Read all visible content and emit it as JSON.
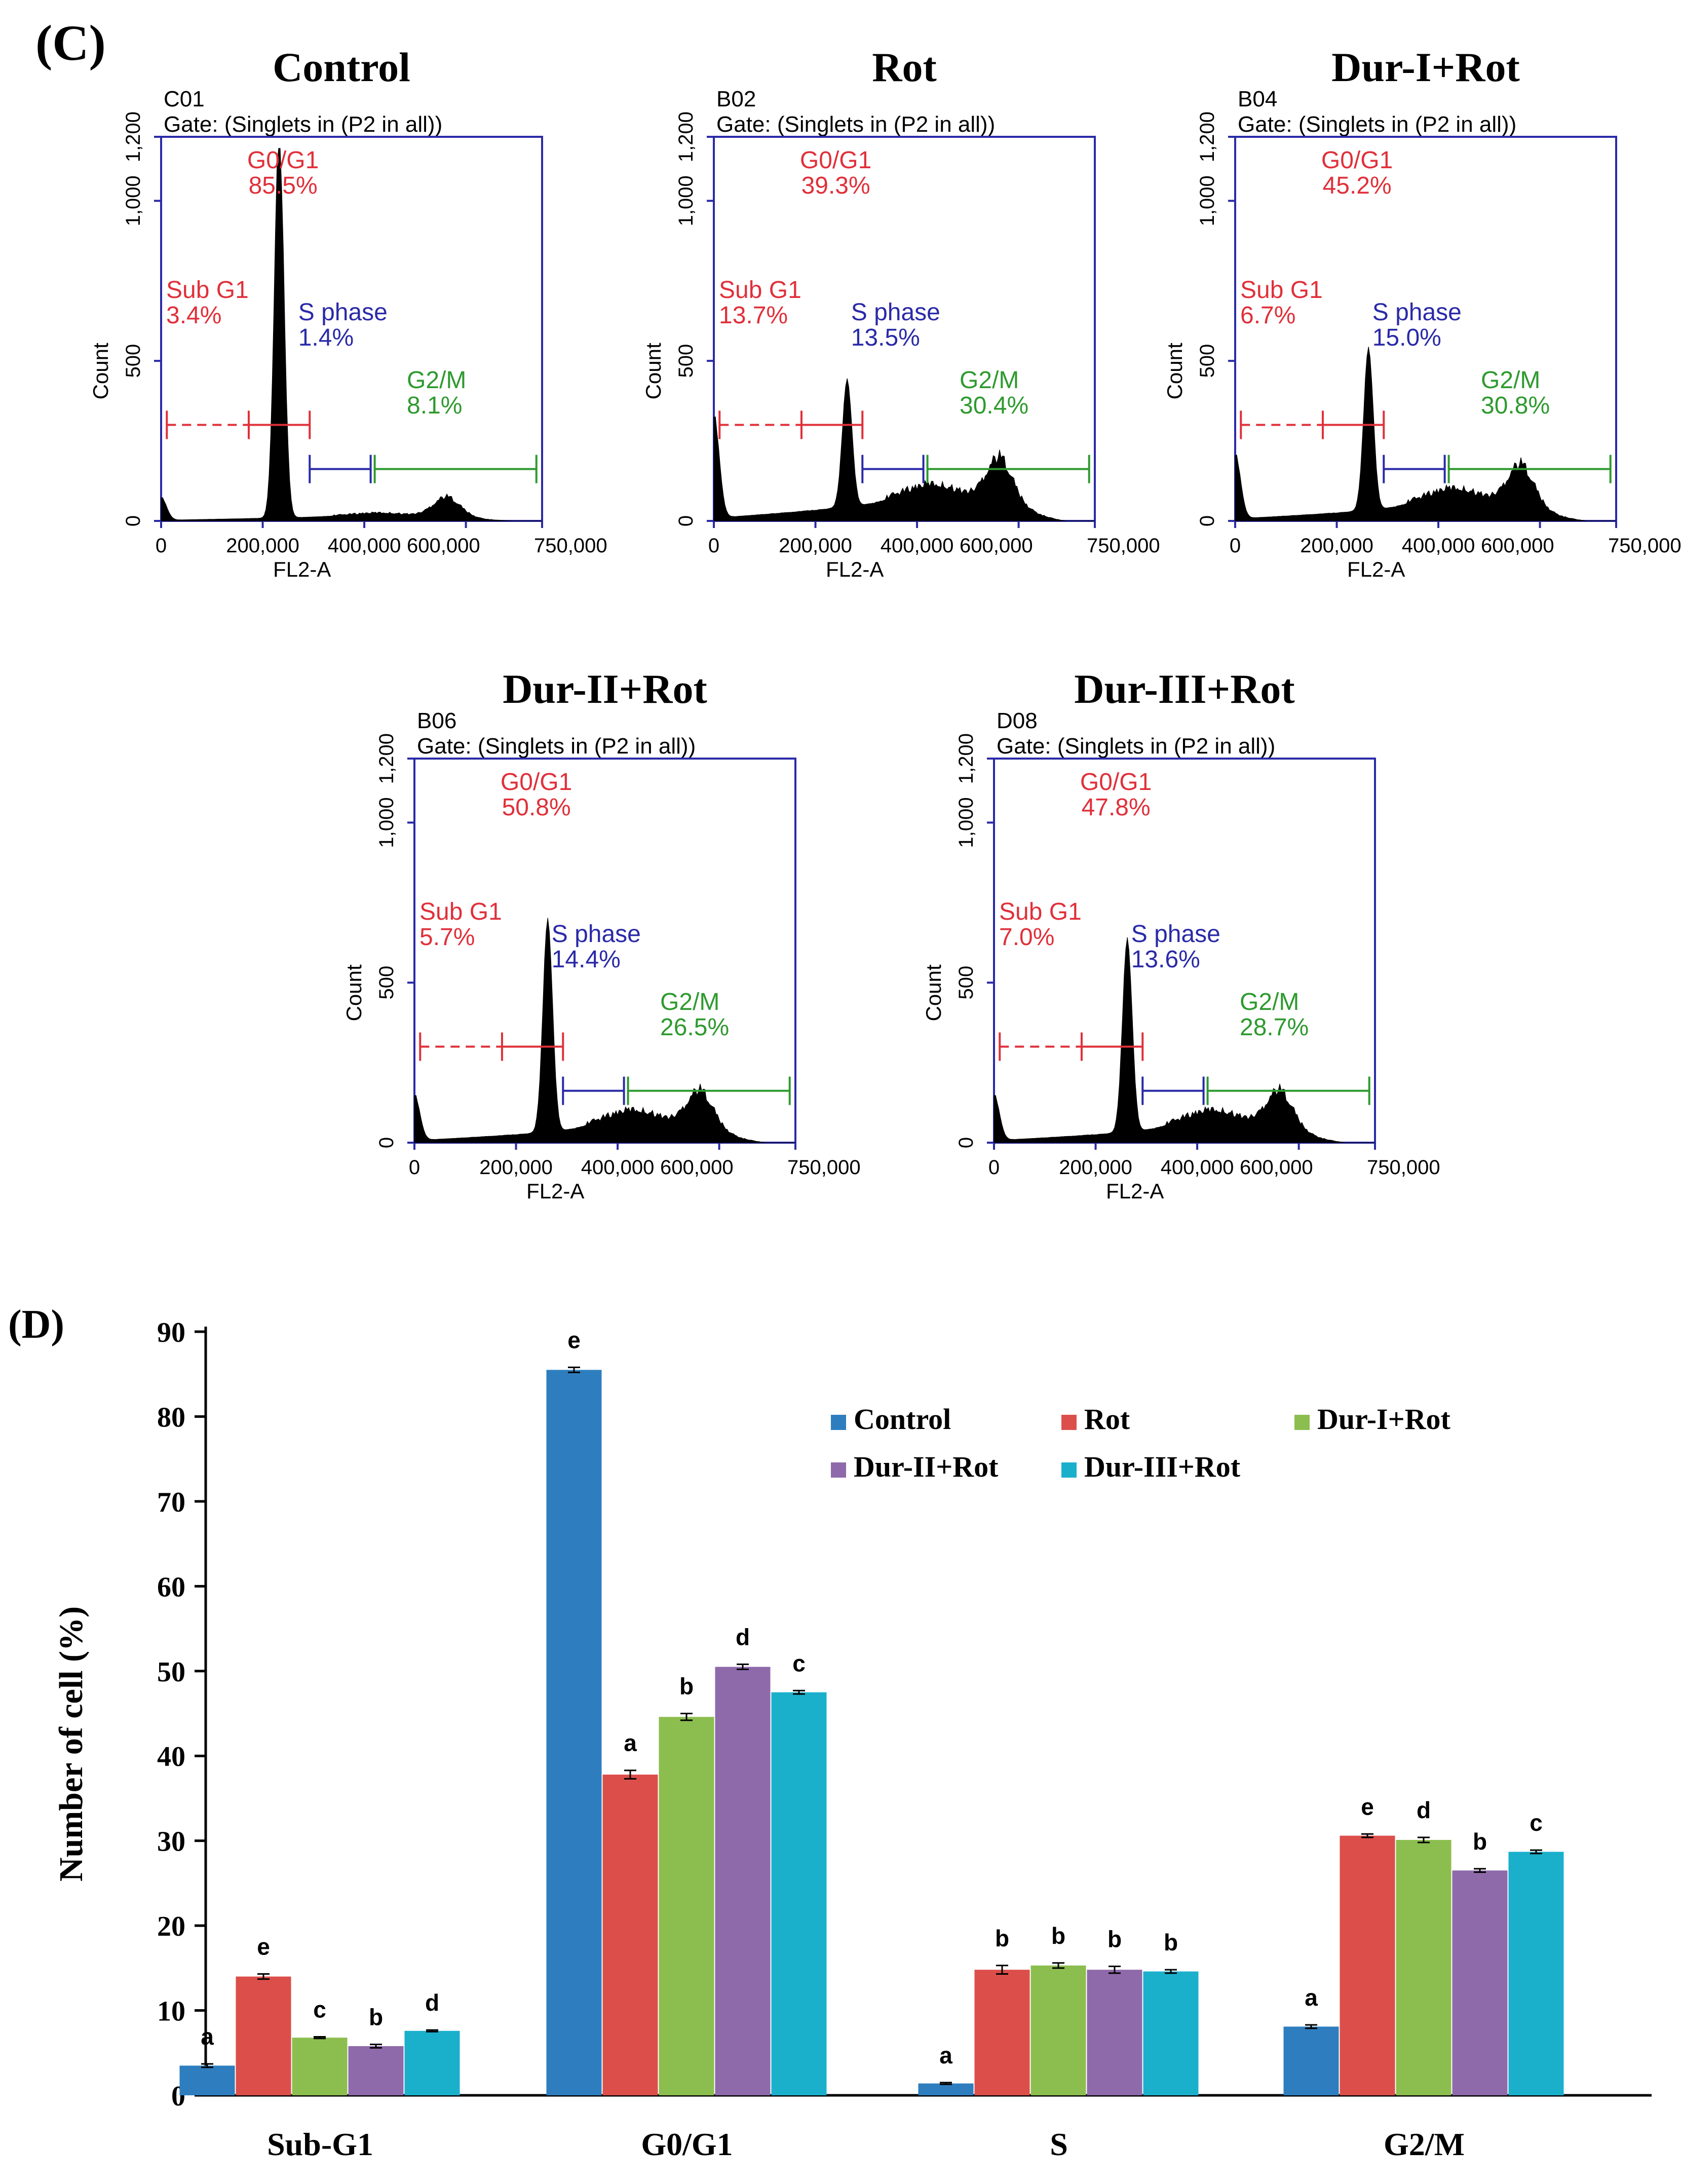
{
  "panel_c": {
    "label": "(C)",
    "gate_text": "Gate: (Singlets in (P2 in all))",
    "x_axis_label": "FL2-A",
    "y_axis_label": "Count",
    "x_ticks": [
      "0",
      "200,000",
      "400,000",
      "600,000",
      "750,000"
    ],
    "y_ticks": [
      "0",
      "500",
      "1,000",
      "1,200"
    ],
    "region_labels": {
      "sub_g1": "Sub G1",
      "g0_g1": "G0/G1",
      "s": "S phase",
      "g2_m": "G2/M"
    },
    "colors": {
      "sub_g1": "#e0303a",
      "g0_g1": "#e0303a",
      "s": "#2a2aa8",
      "g2_m": "#2e9a2e",
      "frame": "#2a2aa8",
      "histogram": "#000000"
    },
    "plots": [
      {
        "title": "Control",
        "sample": "C01",
        "sub_g1": "3.4%",
        "g0_g1": "85.5%",
        "s": "1.4%",
        "g2_m": "8.1%"
      },
      {
        "title": "Rot",
        "sample": "B02",
        "sub_g1": "13.7%",
        "g0_g1": "39.3%",
        "s": "13.5%",
        "g2_m": "30.4%"
      },
      {
        "title": "Dur-I+Rot",
        "sample": "B04",
        "sub_g1": "6.7%",
        "g0_g1": "45.2%",
        "s": "15.0%",
        "g2_m": "30.8%"
      },
      {
        "title": "Dur-II+Rot",
        "sample": "B06",
        "sub_g1": "5.7%",
        "g0_g1": "50.8%",
        "s": "14.4%",
        "g2_m": "26.5%"
      },
      {
        "title": "Dur-III+Rot",
        "sample": "D08",
        "sub_g1": "7.0%",
        "g0_g1": "47.8%",
        "s": "13.6%",
        "g2_m": "28.7%"
      }
    ]
  },
  "chart_data": {
    "label": "(D)",
    "type": "bar",
    "title": "",
    "xlabel": "",
    "ylabel": "Number of cell (%)",
    "ylim": [
      0,
      90
    ],
    "yticks": [
      0,
      10,
      20,
      30,
      40,
      50,
      60,
      70,
      80,
      90
    ],
    "grid": false,
    "legend_position": "top-right",
    "categories": [
      "Sub-G1",
      "G0/G1",
      "S",
      "G2/M"
    ],
    "series": [
      {
        "name": "Control",
        "color": "#2e7ebf",
        "values": [
          3.5,
          85.5,
          1.4,
          8.1
        ],
        "errors": [
          0.2,
          0.3,
          0.1,
          0.2
        ],
        "letters": [
          "a",
          "e",
          "a",
          "a"
        ]
      },
      {
        "name": "Rot",
        "color": "#dc4e4a",
        "values": [
          14.0,
          37.8,
          14.8,
          30.6
        ],
        "errors": [
          0.3,
          0.5,
          0.5,
          0.2
        ],
        "letters": [
          "e",
          "a",
          "b",
          "e"
        ]
      },
      {
        "name": "Dur-I+Rot",
        "color": "#8cbe4f",
        "values": [
          6.8,
          44.6,
          15.3,
          30.1
        ],
        "errors": [
          0.1,
          0.4,
          0.3,
          0.3
        ],
        "letters": [
          "c",
          "b",
          "b",
          "d"
        ]
      },
      {
        "name": "Dur-II+Rot",
        "color": "#8e6aaa",
        "values": [
          5.8,
          50.5,
          14.8,
          26.5
        ],
        "errors": [
          0.2,
          0.3,
          0.4,
          0.2
        ],
        "letters": [
          "b",
          "d",
          "b",
          "b"
        ]
      },
      {
        "name": "Dur-III+Rot",
        "color": "#1ab0cc",
        "values": [
          7.6,
          47.5,
          14.6,
          28.7
        ],
        "errors": [
          0.1,
          0.2,
          0.2,
          0.2
        ],
        "letters": [
          "d",
          "c",
          "b",
          "c"
        ]
      }
    ]
  }
}
